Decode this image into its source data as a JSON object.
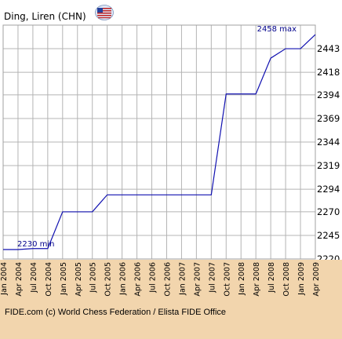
{
  "header": {
    "player": "Ding, Liren (CHN)",
    "flag_icon": "us-flag-icon"
  },
  "footer": {
    "credit": "FIDE.com (c) World Chess Federation / Elista FIDE Office"
  },
  "colors": {
    "line": "#1010b0",
    "annotation": "#00008b",
    "grid": "#b4b4b4",
    "x_label_band": "#f2d5ad"
  },
  "chart_data": {
    "type": "line",
    "title": "",
    "xlabel": "",
    "ylabel": "",
    "x_tick_labels": [
      "Jan 2004",
      "Apr 2004",
      "Jul 2004",
      "Oct 2004",
      "Jan 2005",
      "Apr 2005",
      "Jul 2005",
      "Oct 2005",
      "Jan 2006",
      "Apr 2006",
      "Jul 2006",
      "Oct 2006",
      "Jan 2007",
      "Apr 2007",
      "Jul 2007",
      "Oct 2007",
      "Jan 2008",
      "Apr 2008",
      "Jul 2008",
      "Oct 2008",
      "Jan 2009",
      "Apr 2009"
    ],
    "y_ticks": [
      2220,
      2245,
      2270,
      2294,
      2319,
      2344,
      2369,
      2394,
      2418,
      2443
    ],
    "ylim": [
      2220,
      2468
    ],
    "grid": true,
    "series": [
      {
        "x": [
          "Jan 2004",
          "Apr 2004",
          "Jul 2004",
          "Oct 2004",
          "Jan 2005",
          "Apr 2005",
          "Jul 2005",
          "Oct 2005",
          "Jan 2006",
          "Apr 2006",
          "Jul 2006",
          "Oct 2006",
          "Jan 2007",
          "Apr 2007",
          "Jul 2007",
          "Oct 2007",
          "Jan 2008",
          "Apr 2008",
          "Jul 2008",
          "Oct 2008",
          "Jan 2009",
          "Apr 2009"
        ],
        "values": [
          2230,
          2230,
          2231,
          2231,
          2270,
          2270,
          2270,
          2288,
          2288,
          2288,
          2288,
          2288,
          2288,
          2288,
          2288,
          2395,
          2395,
          2395,
          2433,
          2443,
          2443,
          2458
        ]
      }
    ],
    "annotations": [
      {
        "text": "2230 min",
        "x": "Jan 2004",
        "y": 2230
      },
      {
        "text": "2458 max",
        "x": "Apr 2009",
        "y": 2458
      }
    ]
  }
}
